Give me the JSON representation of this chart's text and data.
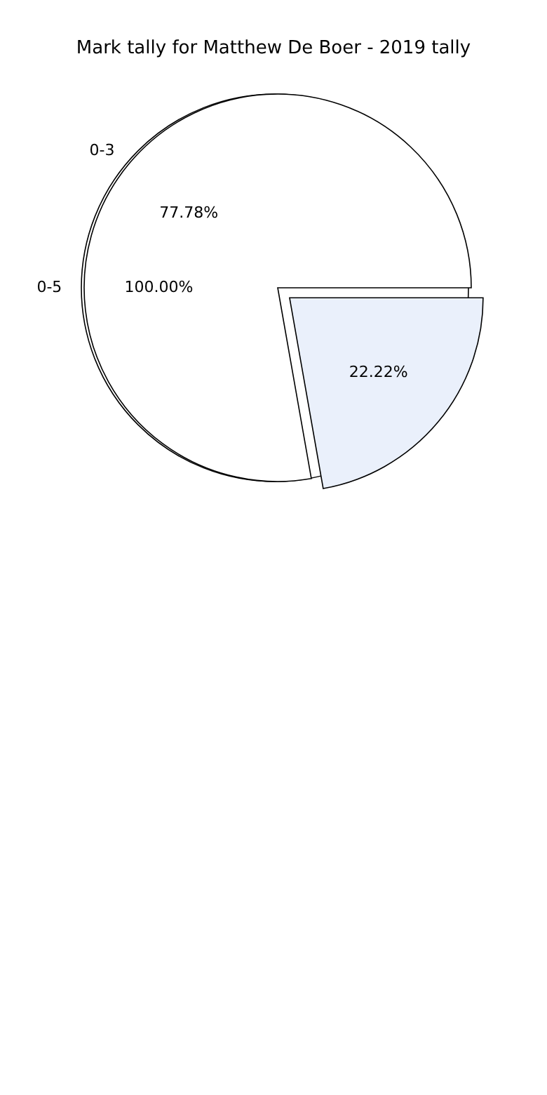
{
  "chart_data": [
    {
      "type": "pie",
      "title": "Mark tally for Matthew De Boer - 2019 tally",
      "categories": [
        "0-3",
        null
      ],
      "values": [
        77.78,
        22.22
      ],
      "colors": [
        "#ffffff",
        "#eaf0fb"
      ],
      "value_labels": [
        "77.78%",
        "22.22%"
      ]
    },
    {
      "type": "pie",
      "categories": [
        "0-5"
      ],
      "values": [
        100
      ],
      "colors": [
        "#ffffff"
      ],
      "value_labels": [
        "100.00%"
      ]
    }
  ]
}
